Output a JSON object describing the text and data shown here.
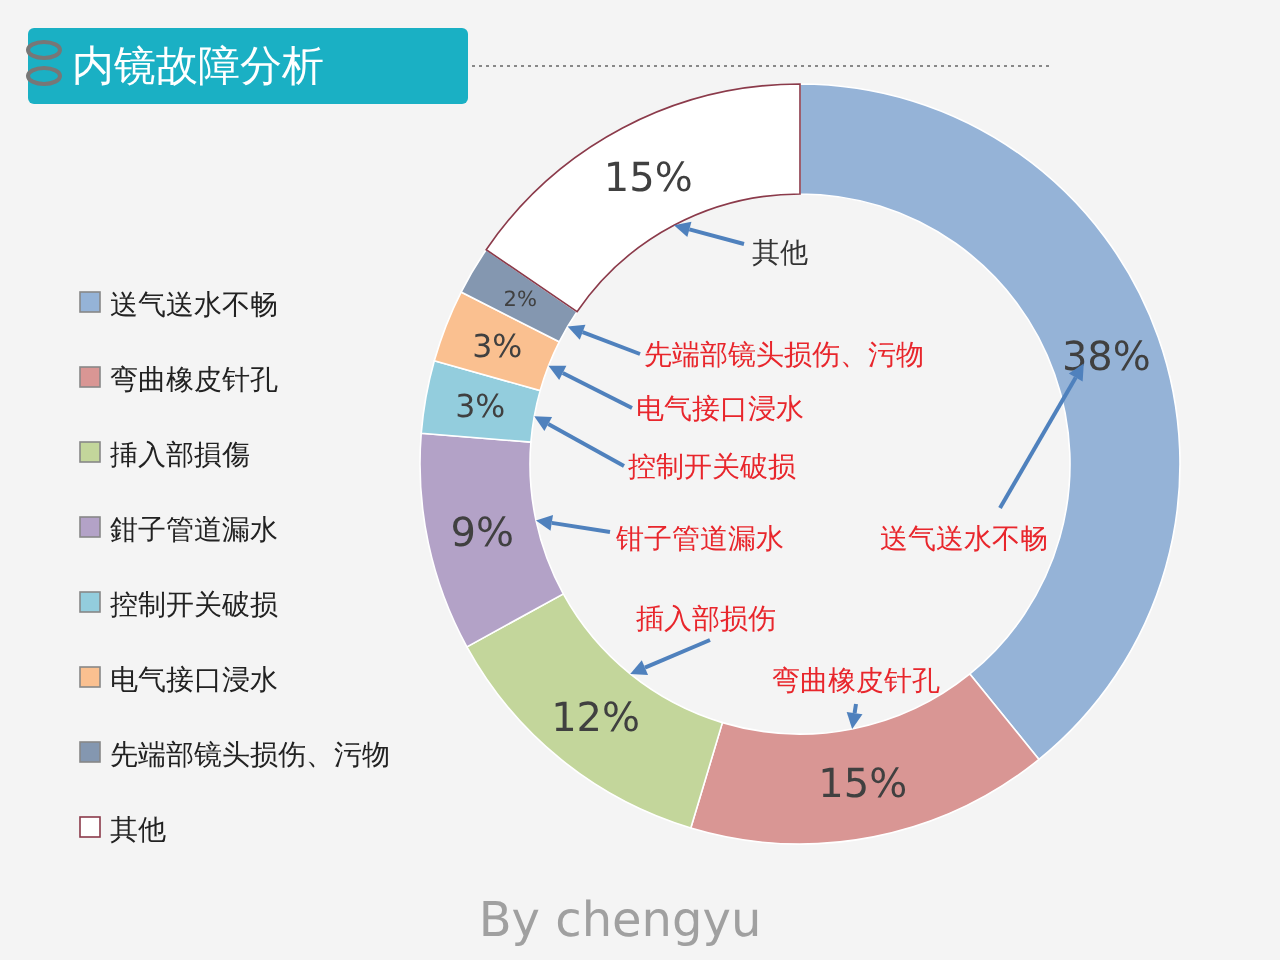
{
  "chart_data": {
    "type": "donut",
    "title": "内镜故障分析",
    "categories": [
      "送气送水不畅",
      "弯曲橡皮针孔",
      "挿入部損傷",
      "鉗子管道漏水",
      "控制开关破损",
      "电气接口浸水",
      "先端部镜头损伤、污物",
      "其他"
    ],
    "values": [
      38,
      15,
      12,
      9,
      3,
      3,
      2,
      15
    ],
    "colors": [
      "#95b3d7",
      "#d99694",
      "#c3d69b",
      "#b3a2c7",
      "#93cddd",
      "#fac090",
      "#8497b0",
      "#ffffff"
    ],
    "value_labels": [
      "38%",
      "15%",
      "12%",
      "9%",
      "3%",
      "3%",
      "2%",
      "15%"
    ],
    "legend": "left",
    "annotations": [
      {
        "text": "其他",
        "x": "其他"
      },
      {
        "text": "先端部镜头损伤、污物",
        "x": "先端部镜头损伤、污物"
      },
      {
        "text": "电气接口浸水",
        "x": "电气接口浸水"
      },
      {
        "text": "控制开关破损",
        "x": "控制开关破损"
      },
      {
        "text": "钳子管道漏水",
        "x": "鉗子管道漏水"
      },
      {
        "text": "送气送水不畅",
        "x": "送气送水不畅"
      },
      {
        "text": "插入部损伤",
        "x": "挿入部損傷"
      },
      {
        "text": "弯曲橡皮针孔",
        "x": "弯曲橡皮针孔"
      },
      "By chengyu"
    ]
  }
}
